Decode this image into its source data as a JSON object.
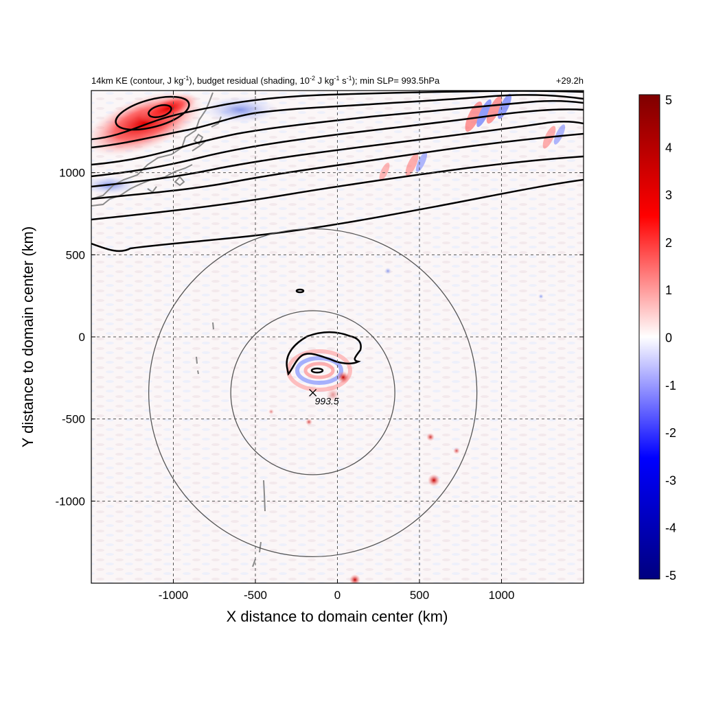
{
  "chart_data": {
    "type": "heatmap",
    "title_left_parts": {
      "p1": "14km KE (contour, J kg",
      "p1_sup": "-1",
      "p2": "), budget residual (shading, 10",
      "p2_sup": "-2",
      "p3": " J kg",
      "p3_sup": "-1",
      "p4": " s",
      "p4_sup": "-1",
      "p5": "); min SLP= 993.5hPa"
    },
    "title_right": "+29.2h",
    "xlabel": "X distance to domain center (km)",
    "ylabel": "Y distance to domain center (km)",
    "xlim": [
      -1500,
      1500
    ],
    "ylim": [
      -1500,
      1500
    ],
    "xticks": [
      -1000,
      -500,
      0,
      500,
      1000
    ],
    "yticks": [
      -1000,
      -500,
      0,
      500,
      1000
    ],
    "grid": true,
    "grid_style": "dashed",
    "colorbar": {
      "min": -5,
      "max": 5,
      "ticks": [
        5,
        4,
        3,
        2,
        1,
        0,
        -1,
        -2,
        -3,
        -4,
        -5
      ],
      "colors": [
        "#00007f",
        "#0000ff",
        "#ffffff",
        "#ff0000",
        "#7f0000"
      ],
      "position": "right"
    },
    "storm_center": {
      "x": -150,
      "y": -340,
      "label": "993.5"
    },
    "range_rings_km": [
      500,
      1000
    ],
    "colors": {
      "positive": "#e8000b",
      "negative": "#1f3fff",
      "contour": "#000000",
      "ring": "#555555",
      "coastline": "#8a8a8a",
      "grid": "#555555"
    }
  }
}
